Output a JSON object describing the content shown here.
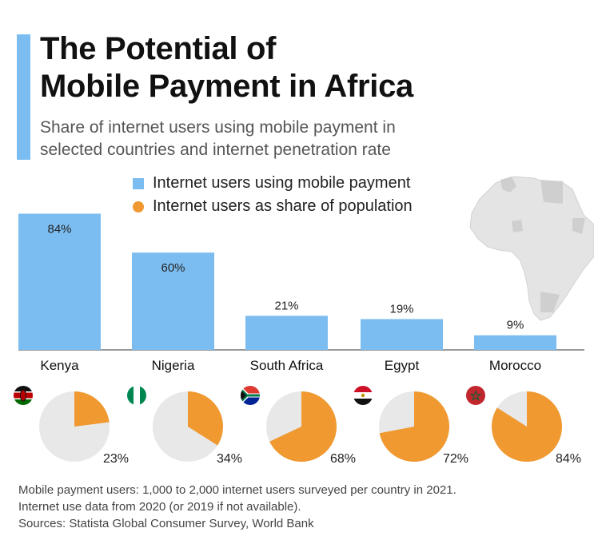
{
  "title_line1": "The Potential of",
  "title_line2": "Mobile Payment in Africa",
  "subtitle_line1": "Share of internet users using mobile payment in",
  "subtitle_line2": "selected countries and internet penetration rate",
  "legend": {
    "bar": "Internet users using mobile payment",
    "pie": "Internet users as share of population"
  },
  "colors": {
    "bar": "#7cbdf1",
    "pie": "#f09931",
    "pie_bg": "#e8e8e8",
    "accent": "#7cbdf1"
  },
  "chart_data": {
    "type": "bar",
    "categories": [
      "Kenya",
      "Nigeria",
      "South Africa",
      "Egypt",
      "Morocco"
    ],
    "series": [
      {
        "name": "Internet users using mobile payment",
        "values": [
          84,
          60,
          21,
          19,
          9
        ],
        "labels": [
          "84%",
          "60%",
          "21%",
          "19%",
          "9%"
        ]
      },
      {
        "name": "Internet users as share of population",
        "values": [
          23,
          34,
          68,
          72,
          84
        ],
        "labels": [
          "23%",
          "34%",
          "68%",
          "72%",
          "84%"
        ]
      }
    ],
    "ylim": [
      0,
      100
    ]
  },
  "flags": [
    "kenya-flag-icon",
    "nigeria-flag-icon",
    "south-africa-flag-icon",
    "egypt-flag-icon",
    "morocco-flag-icon"
  ],
  "footnote": {
    "line1": "Mobile payment users: 1,000 to 2,000 internet users surveyed per country in 2021.",
    "line2": "Internet use data from 2020 (or 2019 if not available).",
    "line3": "Sources: Statista Global Consumer Survey, World Bank"
  }
}
